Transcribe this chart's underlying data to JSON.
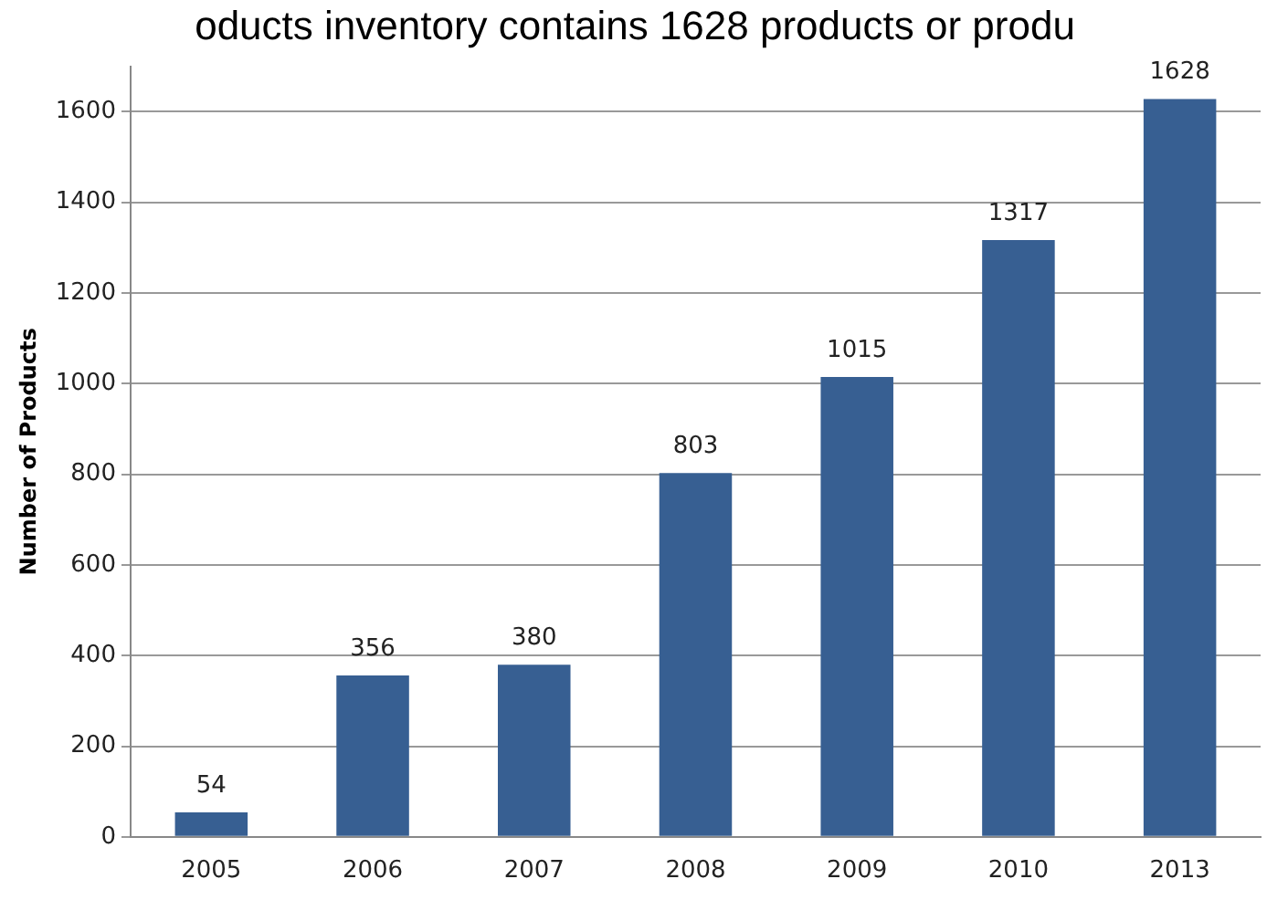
{
  "chart_data": {
    "type": "bar",
    "title": "oducts inventory contains 1628 products or produ",
    "ylabel": "Number of Products",
    "categories": [
      "2005",
      "2006",
      "2007",
      "2008",
      "2009",
      "2010",
      "2013"
    ],
    "values": [
      54,
      356,
      380,
      803,
      1015,
      1317,
      1628
    ],
    "color": "#375f92",
    "ylim": [
      0,
      1700
    ],
    "yticks": [
      0,
      200,
      400,
      600,
      800,
      1000,
      1200,
      1400,
      1600
    ],
    "grid": "y",
    "data_labels": true
  }
}
